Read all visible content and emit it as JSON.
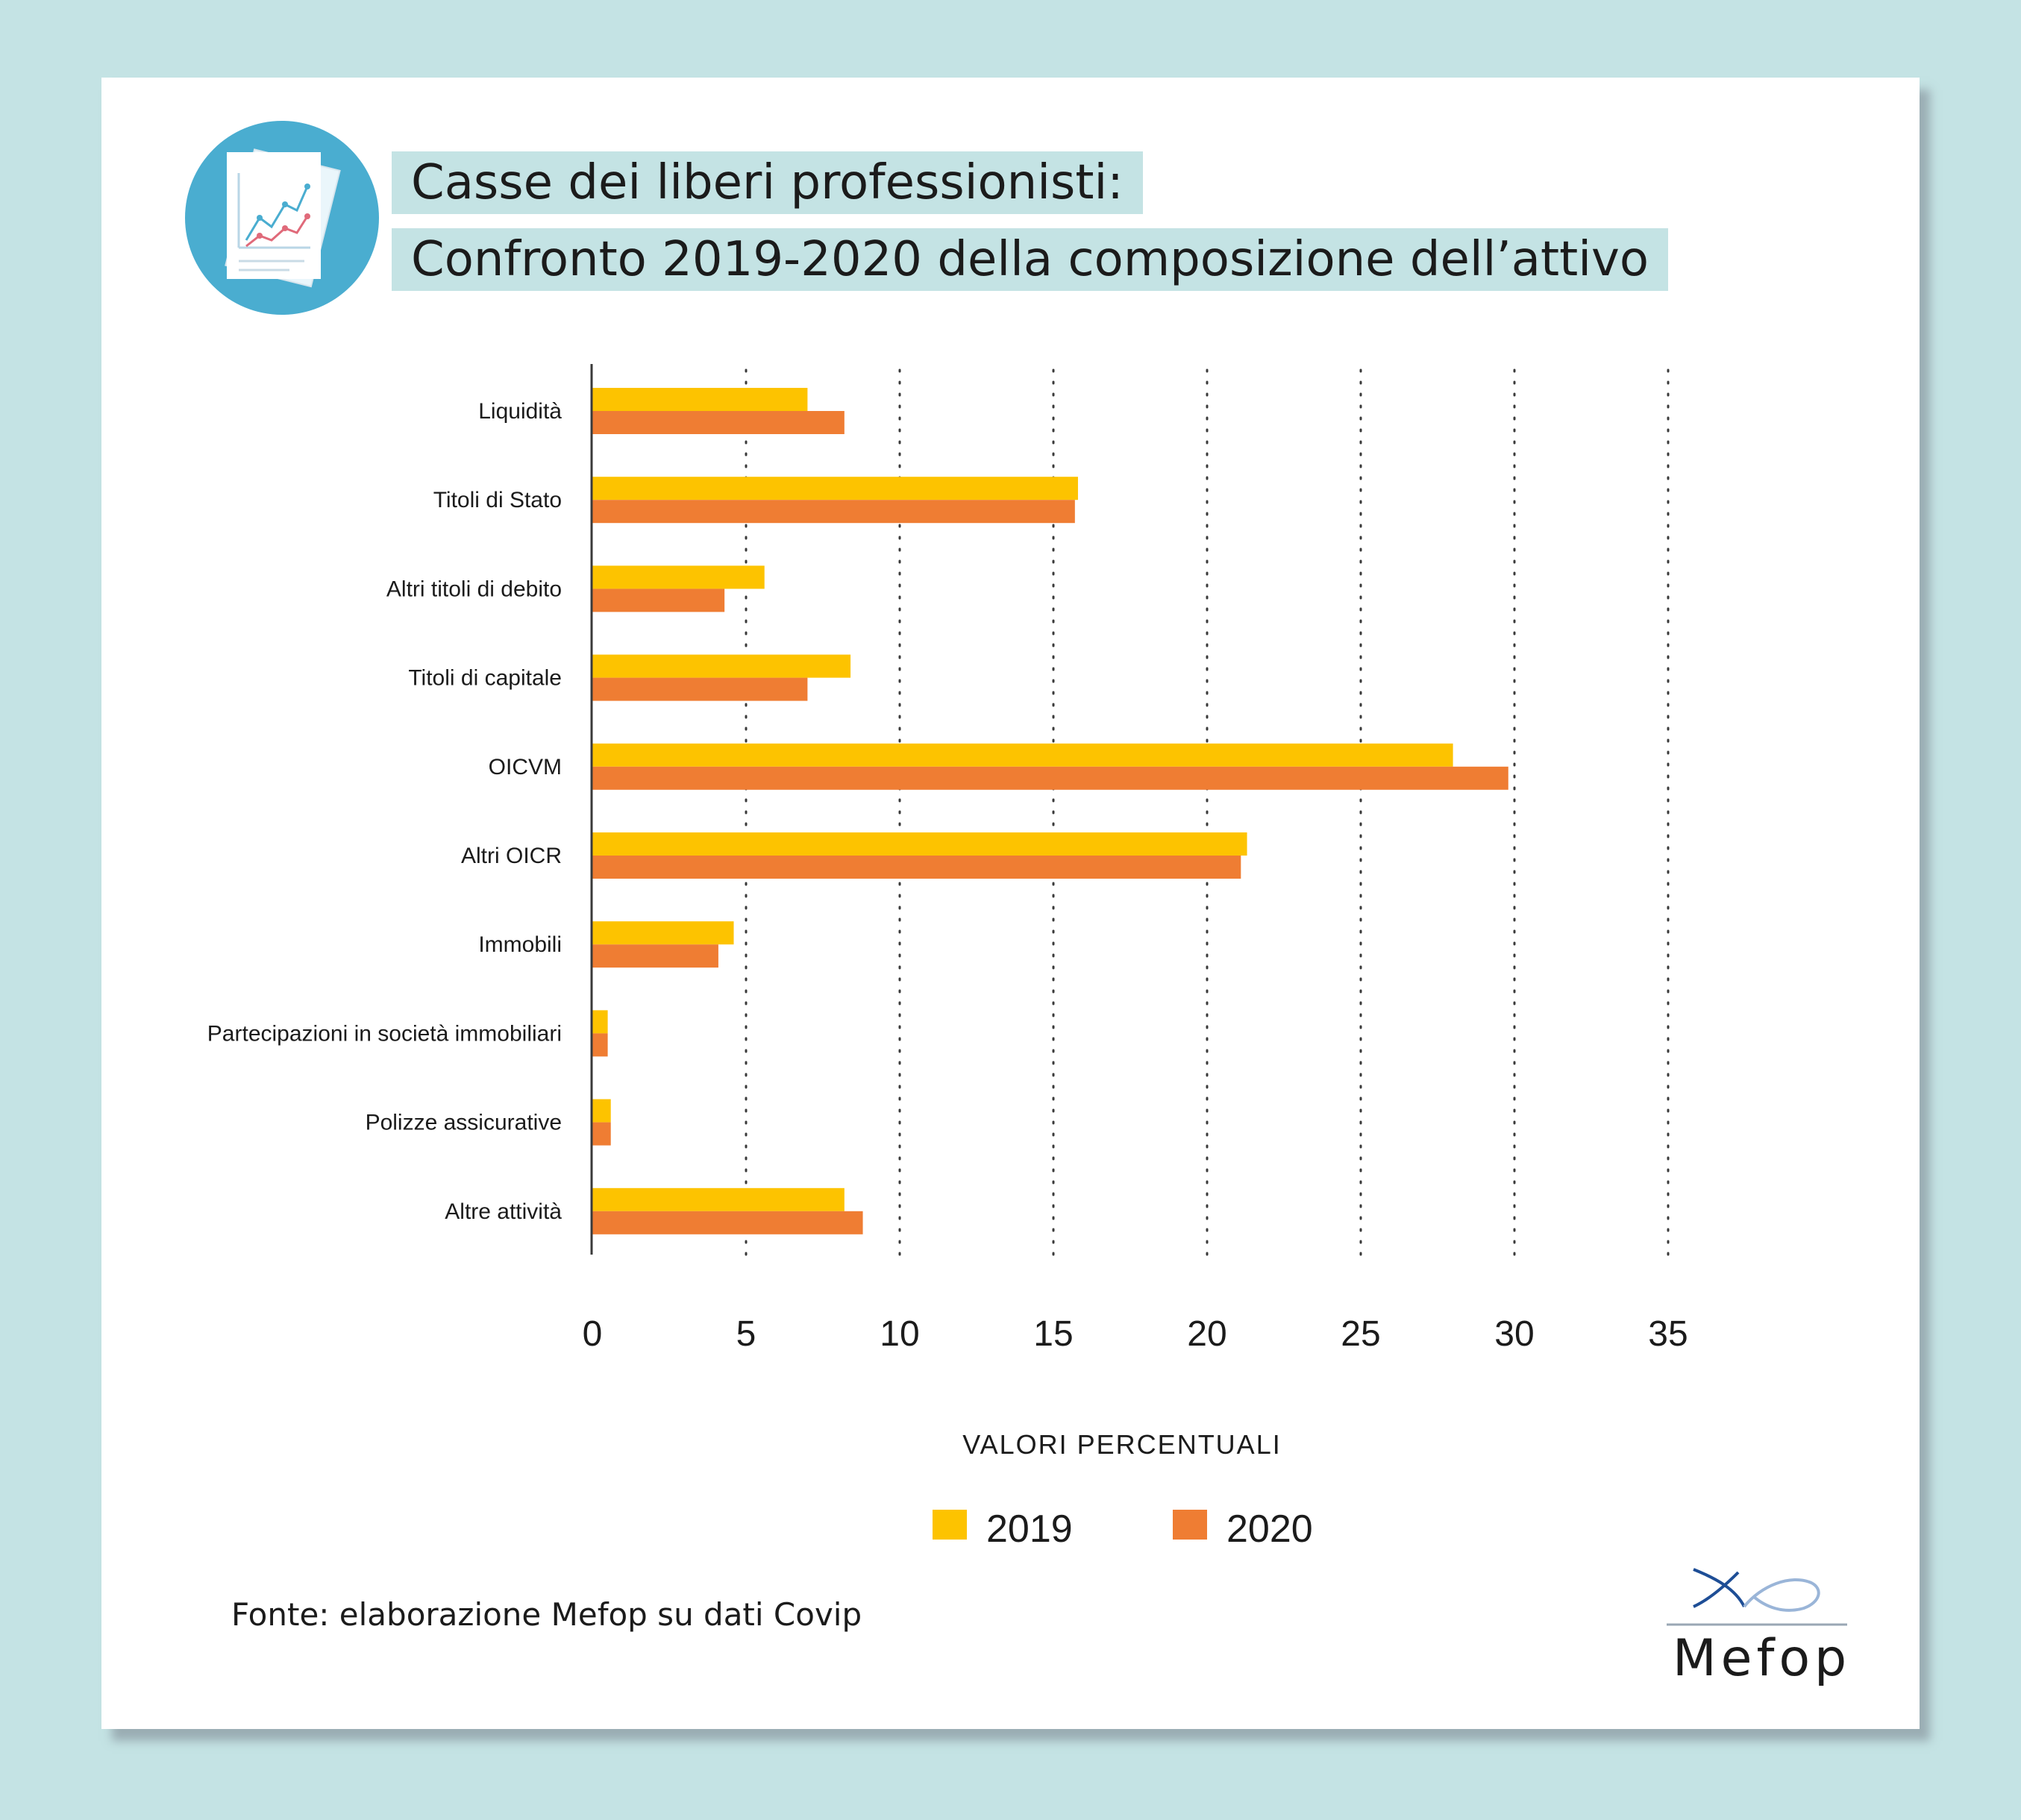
{
  "header": {
    "title_line1": "Casse dei liberi professionisti:",
    "title_line2": "Confronto 2019-2020 della composizione dell’attivo"
  },
  "chart_data": {
    "type": "bar",
    "orientation": "horizontal",
    "categories": [
      "Liquidità",
      "Titoli di Stato",
      "Altri titoli di debito",
      "Titoli di capitale",
      "OICVM",
      "Altri OICR",
      "Immobili",
      "Partecipazioni in società immobiliari",
      "Polizze assicurative",
      "Altre attività"
    ],
    "series": [
      {
        "name": "2019",
        "color": "#fdc300",
        "values": [
          7.0,
          15.8,
          5.6,
          8.4,
          28.0,
          21.3,
          4.6,
          0.5,
          0.6,
          8.2
        ]
      },
      {
        "name": "2020",
        "color": "#ef7d33",
        "values": [
          8.2,
          15.7,
          4.3,
          7.0,
          29.8,
          21.1,
          4.1,
          0.5,
          0.6,
          8.8
        ]
      }
    ],
    "xlim": [
      0,
      35
    ],
    "xticks": [
      "0",
      "5",
      "10",
      "15",
      "20",
      "25",
      "30",
      "35"
    ],
    "xlabel": "VALORI PERCENTUALI",
    "grid": "vertical dotted",
    "legend": "bottom-center"
  },
  "footer": {
    "source": "Fonte: elaborazione Mefop su dati Covip",
    "brand": "Mefop"
  },
  "colors": {
    "background": "#c4e3e4",
    "title_highlight": "#c4e3e4",
    "icon_circle": "#4aadd0",
    "bar_2019": "#fdc300",
    "bar_2020": "#ef7d33"
  },
  "icons": {
    "header": "chart-document-icon",
    "brand": "mefop-logo-icon"
  }
}
